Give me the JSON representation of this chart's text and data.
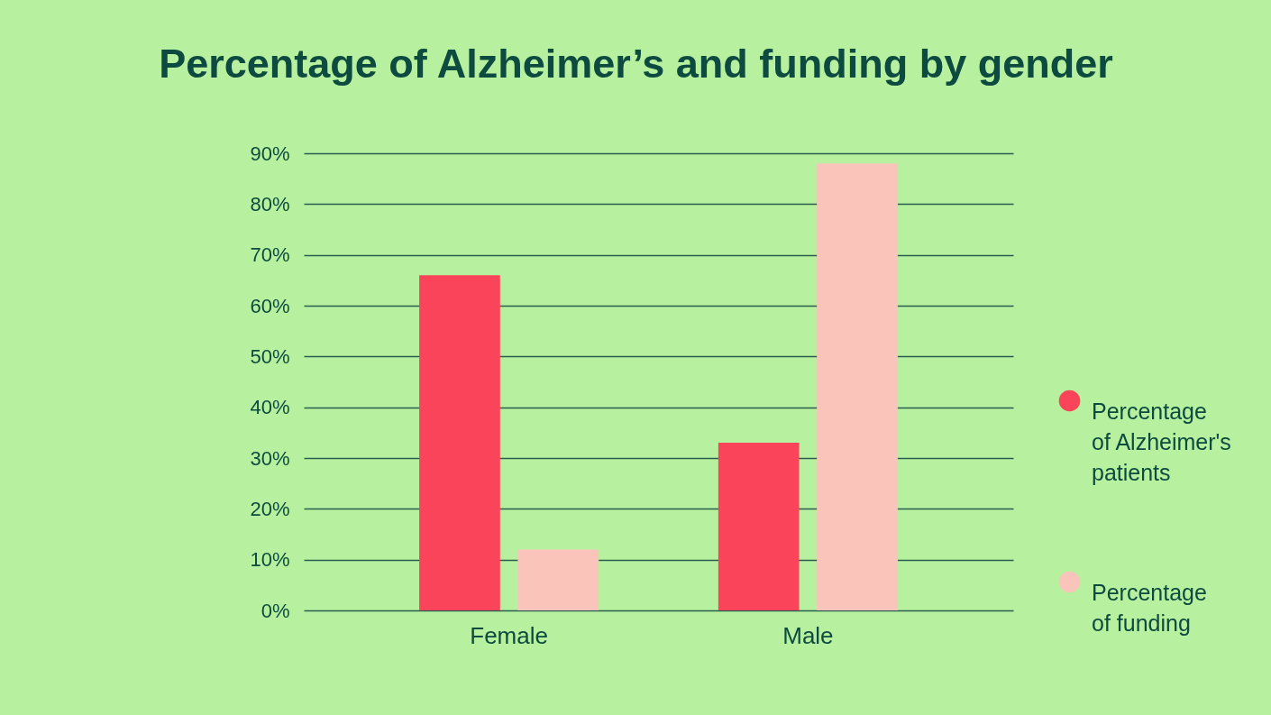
{
  "chart_data": {
    "type": "bar",
    "title": "Percentage of Alzheimer’s and funding by gender",
    "categories": [
      "Female",
      "Male"
    ],
    "series": [
      {
        "name": "Percentage of Alzheimer's patients",
        "color": "#fa4459",
        "values": [
          66,
          33
        ]
      },
      {
        "name": "Percentage of funding",
        "color": "#fbc4bb",
        "values": [
          12,
          88
        ]
      }
    ],
    "ylim": [
      0,
      90
    ],
    "yticks": [
      {
        "value": 0,
        "label": "0%"
      },
      {
        "value": 10,
        "label": "10%"
      },
      {
        "value": 20,
        "label": "20%"
      },
      {
        "value": 30,
        "label": "30%"
      },
      {
        "value": 40,
        "label": "40%"
      },
      {
        "value": 50,
        "label": "50%"
      },
      {
        "value": 60,
        "label": "60%"
      },
      {
        "value": 70,
        "label": "70%"
      },
      {
        "value": 80,
        "label": "80%"
      },
      {
        "value": 90,
        "label": "90%"
      }
    ],
    "grid": "y",
    "legend": "right"
  }
}
